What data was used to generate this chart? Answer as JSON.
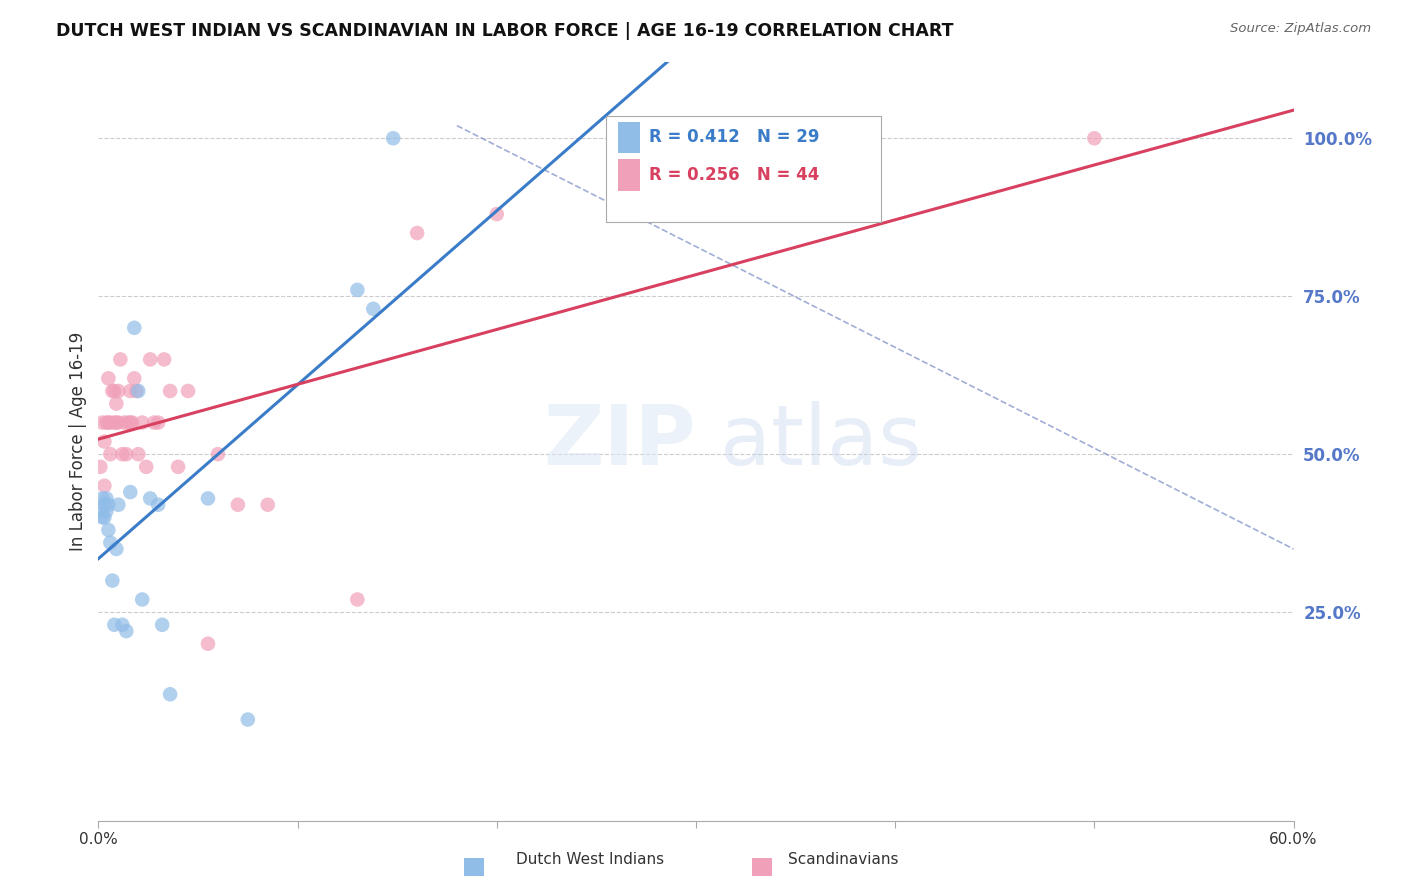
{
  "title": "DUTCH WEST INDIAN VS SCANDINAVIAN IN LABOR FORCE | AGE 16-19 CORRELATION CHART",
  "source": "Source: ZipAtlas.com",
  "ylabel": "In Labor Force | Age 16-19",
  "xlim": [
    0.0,
    0.6
  ],
  "ylim": [
    -0.08,
    1.12
  ],
  "xticks": [
    0.0,
    0.1,
    0.2,
    0.3,
    0.4,
    0.5,
    0.6
  ],
  "yticks_right": [
    0.25,
    0.5,
    0.75,
    1.0
  ],
  "ytick_labels_right": [
    "25.0%",
    "50.0%",
    "75.0%",
    "100.0%"
  ],
  "xtick_labels": [
    "0.0%",
    "",
    "",
    "",
    "",
    "",
    "60.0%"
  ],
  "blue_color": "#90bce8",
  "pink_color": "#f0a0b8",
  "blue_line_color": "#3a7cc8",
  "pink_line_color": "#d84060",
  "right_axis_color": "#5578c8",
  "legend_R_blue": "0.412",
  "legend_N_blue": "29",
  "legend_R_pink": "0.256",
  "legend_N_pink": "44",
  "grid_color": "#cccccc",
  "background_color": "#ffffff",
  "blue_x": [
    0.001,
    0.002,
    0.002,
    0.003,
    0.003,
    0.004,
    0.004,
    0.005,
    0.005,
    0.006,
    0.007,
    0.008,
    0.009,
    0.01,
    0.012,
    0.014,
    0.016,
    0.018,
    0.02,
    0.022,
    0.026,
    0.03,
    0.032,
    0.036,
    0.055,
    0.075,
    0.13,
    0.138,
    0.148
  ],
  "blue_y": [
    0.41,
    0.4,
    0.43,
    0.42,
    0.4,
    0.41,
    0.43,
    0.42,
    0.38,
    0.36,
    0.3,
    0.23,
    0.35,
    0.42,
    0.23,
    0.22,
    0.44,
    0.7,
    0.6,
    0.27,
    0.43,
    0.42,
    0.23,
    0.12,
    0.43,
    0.08,
    0.76,
    0.73,
    1.0
  ],
  "pink_x": [
    0.001,
    0.002,
    0.003,
    0.003,
    0.004,
    0.005,
    0.005,
    0.006,
    0.006,
    0.007,
    0.008,
    0.008,
    0.009,
    0.009,
    0.01,
    0.01,
    0.011,
    0.012,
    0.013,
    0.014,
    0.015,
    0.016,
    0.016,
    0.017,
    0.018,
    0.019,
    0.02,
    0.022,
    0.024,
    0.026,
    0.028,
    0.03,
    0.033,
    0.036,
    0.04,
    0.045,
    0.055,
    0.06,
    0.07,
    0.085,
    0.13,
    0.16,
    0.2,
    0.5
  ],
  "pink_y": [
    0.48,
    0.55,
    0.45,
    0.52,
    0.55,
    0.62,
    0.55,
    0.5,
    0.55,
    0.6,
    0.6,
    0.55,
    0.58,
    0.55,
    0.55,
    0.6,
    0.65,
    0.5,
    0.55,
    0.5,
    0.55,
    0.55,
    0.6,
    0.55,
    0.62,
    0.6,
    0.5,
    0.55,
    0.48,
    0.65,
    0.55,
    0.55,
    0.65,
    0.6,
    0.48,
    0.6,
    0.2,
    0.5,
    0.42,
    0.42,
    0.27,
    0.85,
    0.88,
    1.0
  ]
}
